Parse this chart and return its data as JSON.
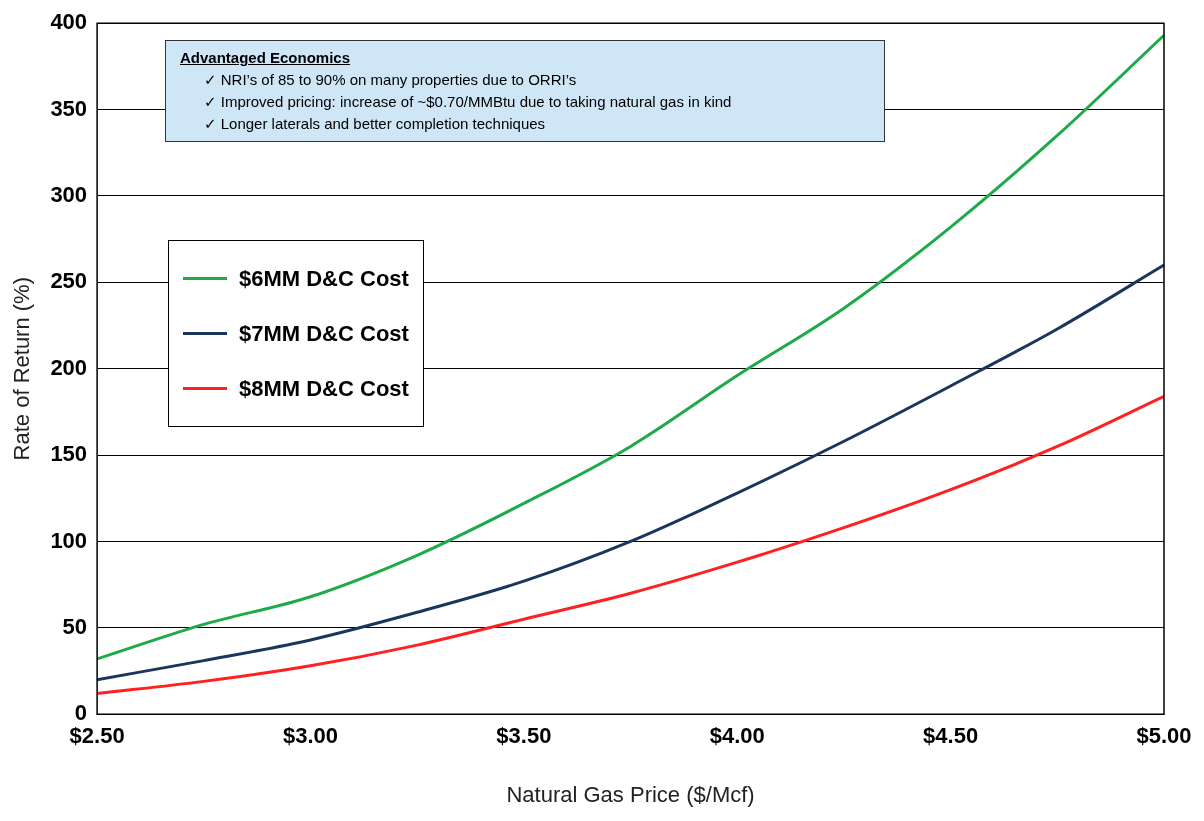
{
  "chart_data": {
    "type": "line",
    "xlabel": "Natural Gas Price ($/Mcf)",
    "ylabel": "Rate of Return (%)",
    "annotations": [
      "Advantaged Economics",
      "✓  NRI’s of 85 to 90% on many properties due to ORRI’s",
      "✓  Improved pricing: increase of ~$0.70/MMBtu due to taking natural gas in kind",
      "✓  Longer laterals and better completion techniques"
    ],
    "x": [
      2.5,
      2.75,
      3.0,
      3.25,
      3.5,
      3.75,
      4.0,
      4.25,
      4.5,
      4.75,
      5.0
    ],
    "series": [
      {
        "name": "$6MM D&C Cost",
        "color": "#1faa4a",
        "values": [
          32,
          52,
          68,
          92,
          122,
          155,
          196,
          235,
          282,
          335,
          393
        ]
      },
      {
        "name": "$7MM D&C Cost",
        "color": "#1b365d",
        "values": [
          20,
          31,
          43,
          59,
          77,
          100,
          128,
          158,
          190,
          223,
          260
        ]
      },
      {
        "name": "$8MM D&C Cost",
        "color": "#ff2020",
        "values": [
          12,
          19,
          28,
          40,
          55,
          70,
          88,
          108,
          130,
          155,
          184
        ]
      }
    ],
    "xlim": [
      2.5,
      5.0
    ],
    "xticks": [
      {
        "value": 2.5,
        "label": "$2.50"
      },
      {
        "value": 3.0,
        "label": "$3.00"
      },
      {
        "value": 3.5,
        "label": "$3.50"
      },
      {
        "value": 4.0,
        "label": "$4.00"
      },
      {
        "value": 4.5,
        "label": "$4.50"
      },
      {
        "value": 5.0,
        "label": "$5.00"
      }
    ],
    "ylim": [
      0,
      400
    ],
    "yticks": [
      0,
      50,
      100,
      150,
      200,
      250,
      300,
      350,
      400
    ],
    "grid": "y",
    "legend": "left",
    "marker": "none",
    "line_style": "solid"
  }
}
